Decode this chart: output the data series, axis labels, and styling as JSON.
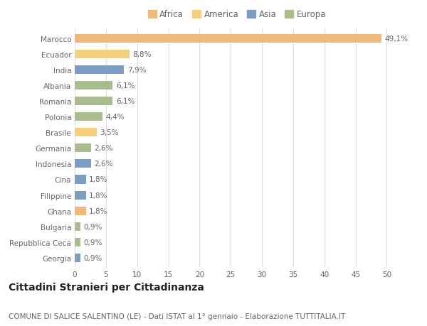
{
  "countries": [
    "Marocco",
    "Ecuador",
    "India",
    "Albania",
    "Romania",
    "Polonia",
    "Brasile",
    "Germania",
    "Indonesia",
    "Cina",
    "Filippine",
    "Ghana",
    "Bulgaria",
    "Repubblica Ceca",
    "Georgia"
  ],
  "values": [
    49.1,
    8.8,
    7.9,
    6.1,
    6.1,
    4.4,
    3.5,
    2.6,
    2.6,
    1.8,
    1.8,
    1.8,
    0.9,
    0.9,
    0.9
  ],
  "labels": [
    "49,1%",
    "8,8%",
    "7,9%",
    "6,1%",
    "6,1%",
    "4,4%",
    "3,5%",
    "2,6%",
    "2,6%",
    "1,8%",
    "1,8%",
    "1,8%",
    "0,9%",
    "0,9%",
    "0,9%"
  ],
  "continents": [
    "Africa",
    "America",
    "Asia",
    "Europa",
    "Europa",
    "Europa",
    "America",
    "Europa",
    "Asia",
    "Asia",
    "Asia",
    "Africa",
    "Europa",
    "Europa",
    "Asia"
  ],
  "colors": {
    "Africa": "#F0B87A",
    "America": "#F5D07A",
    "Asia": "#7B9DC5",
    "Europa": "#A8BC8C"
  },
  "legend_order": [
    "Africa",
    "America",
    "Asia",
    "Europa"
  ],
  "title": "Cittadini Stranieri per Cittadinanza",
  "subtitle": "COMUNE DI SALICE SALENTINO (LE) - Dati ISTAT al 1° gennaio - Elaborazione TUTTITALIA.IT",
  "xlim": [
    0,
    52
  ],
  "xticks": [
    0,
    5,
    10,
    15,
    20,
    25,
    30,
    35,
    40,
    45,
    50
  ],
  "background_color": "#ffffff",
  "grid_color": "#dddddd",
  "bar_height": 0.55,
  "label_fontsize": 7.5,
  "title_fontsize": 10,
  "subtitle_fontsize": 7.5,
  "tick_fontsize": 7.5,
  "legend_fontsize": 8.5
}
